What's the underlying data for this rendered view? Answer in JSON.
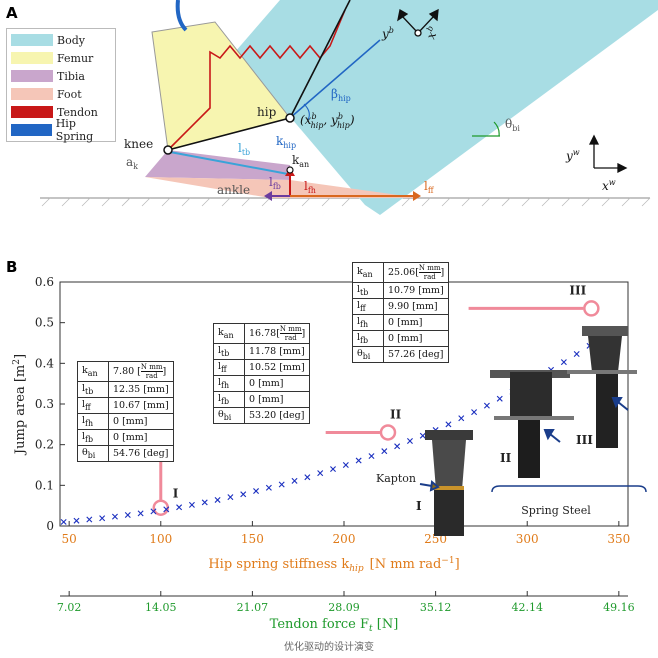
{
  "panel_a": {
    "label": "A",
    "legend": [
      {
        "name": "Body",
        "color": "#a8dde4"
      },
      {
        "name": "Femur",
        "color": "#f7f5b0"
      },
      {
        "name": "Tibia",
        "color": "#c9a6cc"
      },
      {
        "name": "Foot",
        "color": "#f5c6b8"
      },
      {
        "name": "Tendon",
        "color": "#c81818"
      },
      {
        "name": "Hip Spring",
        "color": "#2166c4"
      }
    ],
    "labels": {
      "hip": "hip",
      "knee": "knee",
      "ankle": "ankle",
      "a_k": "a",
      "a_k_sub": "k",
      "k_hip": "k",
      "k_hip_sub": "hip",
      "k_an": "k",
      "k_an_sub": "an",
      "beta": "β",
      "beta_sub": "hip",
      "l_tb": "l",
      "l_tb_sub": "tb",
      "l_fb": "l",
      "l_fb_sub": "fb",
      "l_fh": "l",
      "l_fh_sub": "fh",
      "l_ff": "l",
      "l_ff_sub": "ff",
      "theta": "θ",
      "theta_sub": "bi",
      "hip_coords": "(x",
      "hip_coords_sup": "b",
      "hip_coords_sub": "hip",
      "hip_coords_mid": ", y",
      "hip_coords_end": ")",
      "yb": "y",
      "yb_sup": "b",
      "xb": "x",
      "xb_sup": "b",
      "yw": "y",
      "yw_sup": "w",
      "xw": "x",
      "xw_sup": "w"
    }
  },
  "panel_b": {
    "label": "B",
    "photo_labels": {
      "I": "I",
      "II": "II",
      "III": "III",
      "kapton": "Kapton",
      "spring_steel": "Spring Steel"
    },
    "tables": [
      {
        "id": "I",
        "rows": [
          [
            "k",
            "an",
            "7.80 [",
            "N mm",
            "rad",
            "]"
          ],
          [
            "l",
            "tb",
            "12.35  [mm]"
          ],
          [
            "l",
            "ff",
            "10.67  [mm]"
          ],
          [
            "l",
            "fh",
            "0      [mm]"
          ],
          [
            "l",
            "fb",
            "0      [mm]"
          ],
          [
            "θ",
            "bi",
            "54.76  [deg]"
          ]
        ]
      },
      {
        "id": "II",
        "rows": [
          [
            "k",
            "an",
            "16.78[",
            "N mm",
            "rad",
            "]"
          ],
          [
            "l",
            "tb",
            "11.78  [mm]"
          ],
          [
            "l",
            "ff",
            "10.52  [mm]"
          ],
          [
            "l",
            "fh",
            "0      [mm]"
          ],
          [
            "l",
            "fb",
            "0      [mm]"
          ],
          [
            "θ",
            "bi",
            "53.20  [deg]"
          ]
        ]
      },
      {
        "id": "III",
        "rows": [
          [
            "k",
            "an",
            "25.06[",
            "N mm",
            "rad",
            "]"
          ],
          [
            "l",
            "tb",
            "10.79  [mm]"
          ],
          [
            "l",
            "ff",
            "9.90   [mm]"
          ],
          [
            "l",
            "fh",
            "0      [mm]"
          ],
          [
            "l",
            "fb",
            "0      [mm]"
          ],
          [
            "θ",
            "bi",
            "57.26  [deg]"
          ]
        ]
      }
    ]
  },
  "chart_data": {
    "type": "scatter",
    "xlabel": "Hip spring stiffness k",
    "xlabel_sub": "hip",
    "xlabel_units": "[N mm rad",
    "xlabel_units_sup": "−1",
    "xlabel_units_end": "]",
    "ylabel": "Jump area  [m",
    "ylabel_sup": "2",
    "ylabel_end": "]",
    "x2label": "Tendon force F",
    "x2label_sub": "t",
    "x2label_units": " [N]",
    "xlim": [
      45,
      355
    ],
    "ylim": [
      0,
      0.6
    ],
    "xticks": [
      50,
      100,
      150,
      200,
      250,
      300,
      350
    ],
    "yticks": [
      0,
      0.1,
      0.2,
      0.3,
      0.4,
      0.5,
      0.6
    ],
    "x2ticks": [
      "7.02",
      "14.05",
      "21.07",
      "28.09",
      "35.12",
      "42.14",
      "49.16"
    ],
    "x2tick_positions": [
      50,
      100,
      150,
      200,
      250,
      300,
      350
    ],
    "colors": {
      "markers": "#1a2fbf",
      "xaxis": "#e07b1a",
      "x2axis": "#1f9a2c",
      "highlight": "#f08a9a"
    },
    "series": [
      {
        "values": [
          [
            47,
            0.01
          ],
          [
            54,
            0.013
          ],
          [
            61,
            0.016
          ],
          [
            68,
            0.019
          ],
          [
            75,
            0.023
          ],
          [
            82,
            0.027
          ],
          [
            89,
            0.031
          ],
          [
            96,
            0.036
          ],
          [
            103,
            0.041
          ],
          [
            110,
            0.046
          ],
          [
            117,
            0.052
          ],
          [
            124,
            0.058
          ],
          [
            131,
            0.064
          ],
          [
            138,
            0.071
          ],
          [
            145,
            0.078
          ],
          [
            152,
            0.086
          ],
          [
            159,
            0.094
          ],
          [
            166,
            0.102
          ],
          [
            173,
            0.111
          ],
          [
            180,
            0.12
          ],
          [
            187,
            0.13
          ],
          [
            194,
            0.14
          ],
          [
            201,
            0.15
          ],
          [
            208,
            0.161
          ],
          [
            215,
            0.172
          ],
          [
            222,
            0.184
          ],
          [
            229,
            0.196
          ],
          [
            236,
            0.209
          ],
          [
            243,
            0.222
          ],
          [
            250,
            0.236
          ],
          [
            257,
            0.25
          ],
          [
            264,
            0.265
          ],
          [
            271,
            0.28
          ],
          [
            278,
            0.296
          ],
          [
            285,
            0.313
          ],
          [
            292,
            0.33
          ],
          [
            299,
            0.347
          ],
          [
            306,
            0.365
          ],
          [
            313,
            0.384
          ],
          [
            320,
            0.403
          ],
          [
            327,
            0.423
          ],
          [
            334,
            0.443
          ],
          [
            338,
            0.454
          ]
        ]
      }
    ],
    "highlighted": [
      {
        "label": "I",
        "x": 100,
        "y": 0.045
      },
      {
        "label": "II",
        "x": 224,
        "y": 0.23
      },
      {
        "label": "III",
        "x": 335,
        "y": 0.535
      }
    ]
  },
  "caption": "优化驱动的设计演变"
}
